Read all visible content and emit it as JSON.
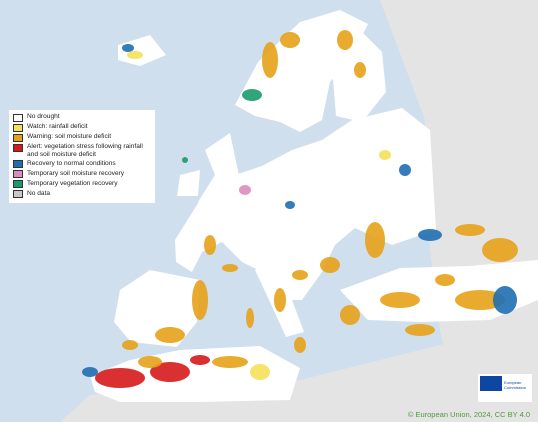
{
  "legend": {
    "items": [
      {
        "label": "No drought",
        "color": "#ffffff"
      },
      {
        "label": "Watch: rainfall deficit",
        "color": "#f5e15a"
      },
      {
        "label": "Warning: soil moisture deficit",
        "color": "#e6a21a"
      },
      {
        "label": "Alert: vegetation stress following rainfall and soil moisture deficit",
        "color": "#d7191c"
      },
      {
        "label": "Recovery to normal conditions",
        "color": "#1f6fb2"
      },
      {
        "label": "Temporary soil moisture recovery",
        "color": "#d98cc0"
      },
      {
        "label": "Temporary vegetation recovery",
        "color": "#1a9a6c"
      },
      {
        "label": "No data",
        "color": "#c8c8c8"
      }
    ]
  },
  "logo_text": "European Commission",
  "copyright": "© European Union, 2024, CC BY 4.0"
}
